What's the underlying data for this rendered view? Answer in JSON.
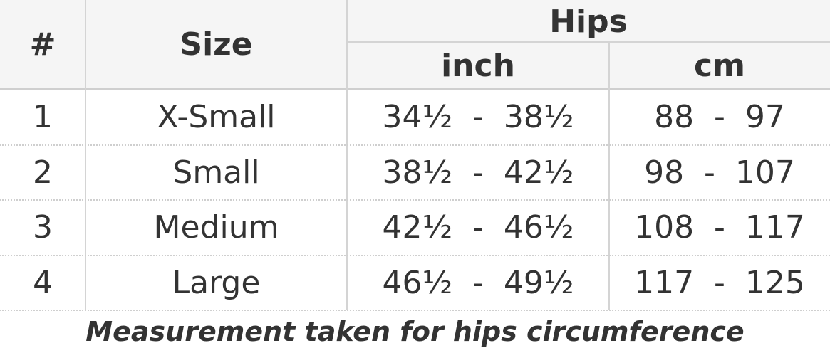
{
  "table": {
    "header": {
      "number": "#",
      "size": "Size",
      "group": "Hips",
      "inch": "inch",
      "cm": "cm"
    },
    "rows": [
      [
        "1",
        "X-Small",
        "34½  -  38½",
        "88  -  97"
      ],
      [
        "2",
        "Small",
        "38½  -  42½",
        "98  -  107"
      ],
      [
        "3",
        "Medium",
        "42½  -  46½",
        "108  -  117"
      ],
      [
        "4",
        "Large",
        "46½  -  49½",
        "117  -  125"
      ]
    ],
    "caption": "Measurement taken for hips circumference"
  }
}
